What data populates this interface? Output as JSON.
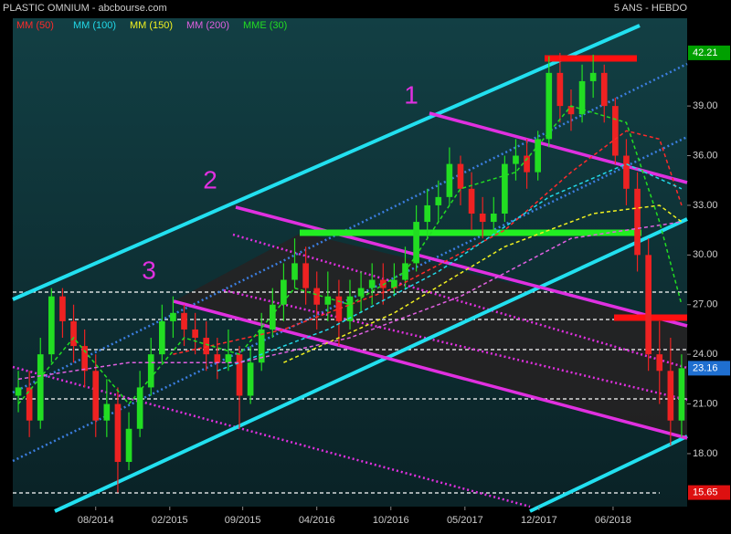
{
  "chart_data": {
    "type": "candlestick",
    "title": "PLASTIC OMNIUM - abcbourse.com",
    "subtitle": "5 ANS - HEBDO",
    "x": [
      0,
      1,
      2,
      3,
      4,
      5,
      6,
      7,
      8,
      9,
      10,
      11,
      12,
      13,
      14,
      15,
      16,
      17,
      18,
      19,
      20,
      21,
      22,
      23,
      24,
      25,
      26,
      27,
      28,
      29,
      30,
      31,
      32,
      33,
      34,
      35,
      36,
      37,
      38,
      39,
      40,
      41,
      42,
      43,
      44,
      45,
      46,
      47,
      48,
      49,
      50,
      51,
      52,
      53,
      54,
      55,
      56,
      57,
      58,
      59,
      60
    ],
    "open": [
      21.5,
      22,
      20,
      24,
      27.5,
      26,
      24.5,
      23,
      20,
      21,
      17.5,
      19.5,
      22,
      24,
      26,
      26.5,
      25.5,
      25,
      24,
      23.5,
      24,
      21.5,
      23.5,
      25.5,
      27,
      28.5,
      29.5,
      28,
      27,
      27.5,
      26,
      27.5,
      28,
      28.5,
      28,
      28.5,
      29.5,
      32,
      33,
      33.5,
      35.5,
      34,
      32.5,
      32,
      32.5,
      35.5,
      36,
      35,
      37,
      41,
      39,
      38.5,
      40.5,
      41,
      39,
      36,
      34,
      30,
      24,
      23,
      20
    ],
    "high": [
      23,
      23,
      25,
      28,
      28,
      27,
      25.5,
      24,
      22.5,
      22,
      20.5,
      23,
      25,
      27,
      27.5,
      27,
      26.5,
      26,
      25,
      25.5,
      24.5,
      24.5,
      26.5,
      28,
      29.5,
      31,
      30.5,
      29,
      29,
      28.5,
      28.5,
      29,
      29.5,
      29.5,
      29.5,
      30.5,
      33,
      34,
      34.5,
      36.5,
      36,
      35,
      33.5,
      33.5,
      36,
      37,
      37,
      37.5,
      42,
      42.21,
      40,
      41.5,
      42.1,
      41.5,
      39.5,
      37,
      35,
      31,
      26,
      25,
      24
    ],
    "low": [
      20.5,
      19,
      19.5,
      23.5,
      25,
      23.5,
      22,
      19,
      19,
      15.65,
      17,
      19,
      21.5,
      23.5,
      25,
      24.5,
      24,
      23,
      22.5,
      23,
      19.5,
      21,
      23,
      25,
      26,
      28,
      27,
      25.5,
      26,
      24.5,
      25.5,
      26.5,
      27,
      27,
      27.5,
      28,
      29,
      31,
      32,
      33,
      33,
      31.5,
      31,
      31.5,
      32,
      34.5,
      34,
      34.5,
      36.5,
      38,
      37.5,
      38,
      39.5,
      38,
      35.5,
      33,
      29,
      23,
      21,
      18.5,
      19
    ],
    "close": [
      22,
      20,
      24,
      27.5,
      26,
      24.5,
      23,
      20,
      21,
      17.5,
      19.5,
      22,
      24,
      26,
      26.5,
      25.5,
      25,
      24,
      23.5,
      24,
      21.5,
      23.5,
      25.5,
      27,
      28.5,
      29.5,
      28,
      27,
      27.5,
      26,
      27.5,
      28,
      28.5,
      28,
      28.5,
      29.5,
      32,
      33,
      33.5,
      35.5,
      34,
      32.5,
      32,
      32.5,
      35.5,
      36,
      35,
      37,
      41,
      39,
      38.5,
      40.5,
      41,
      39,
      36,
      34,
      30,
      24,
      23,
      20,
      23.16
    ],
    "up_color": "#22dd22",
    "down_color": "#ee2222",
    "series": [
      {
        "name": "MM (50)",
        "color": "#ff2a2a",
        "x": [
          14,
          24,
          34,
          44,
          50,
          55,
          58,
          60
        ],
        "values": [
          24,
          25.5,
          28,
          31.5,
          35,
          37.5,
          37,
          33
        ]
      },
      {
        "name": "MM (100)",
        "color": "#22d8e8",
        "x": [
          18,
          28,
          38,
          48,
          55,
          60
        ],
        "values": [
          23,
          25.5,
          29,
          33.5,
          35.5,
          34
        ]
      },
      {
        "name": "MM (150)",
        "color": "#f0f020",
        "x": [
          24,
          34,
          44,
          52,
          58,
          60
        ],
        "values": [
          23.5,
          26.5,
          30.5,
          32.5,
          33,
          32
        ]
      },
      {
        "name": "MM (200)",
        "color": "#e060e0",
        "x": [
          0,
          10,
          20,
          30,
          40,
          50,
          60
        ],
        "values": [
          22.5,
          23.5,
          23.5,
          25,
          27.5,
          31,
          32
        ]
      },
      {
        "name": "MME (30)",
        "color": "#22dd22",
        "x": [
          0,
          5,
          10,
          15,
          20,
          25,
          30,
          35,
          40,
          45,
          50,
          55,
          58,
          60
        ],
        "values": [
          21,
          25,
          21,
          25,
          24,
          28,
          27,
          29,
          34,
          35,
          39,
          38,
          32,
          27
        ]
      }
    ],
    "xlim": [
      -0.5,
      60.5
    ],
    "xticks": [
      {
        "value": 7.0,
        "label": "08/2014"
      },
      {
        "value": 13.7,
        "label": "02/2015"
      },
      {
        "value": 20.3,
        "label": "09/2015"
      },
      {
        "value": 27.0,
        "label": "04/2016"
      },
      {
        "value": 33.7,
        "label": "10/2016"
      },
      {
        "value": 40.4,
        "label": "05/2017"
      },
      {
        "value": 47.1,
        "label": "12/2017"
      },
      {
        "value": 53.8,
        "label": "06/2018"
      }
    ],
    "ylim": [
      14.8,
      44.3
    ],
    "yticks": [
      {
        "value": 18,
        "label": "18.00"
      },
      {
        "value": 21,
        "label": "21.00"
      },
      {
        "value": 24,
        "label": "24.00"
      },
      {
        "value": 27,
        "label": "27.00"
      },
      {
        "value": 30,
        "label": "30.00"
      },
      {
        "value": 33,
        "label": "33.00"
      },
      {
        "value": 36,
        "label": "36.00"
      },
      {
        "value": 39,
        "label": "39.00"
      }
    ],
    "price_markers": [
      {
        "value": 42.21,
        "color": "#00a000"
      },
      {
        "value": 23.16,
        "color": "#1f6fd0"
      },
      {
        "value": 15.65,
        "color": "#dd1010"
      }
    ],
    "annotations": [
      "1",
      "2",
      "3"
    ]
  }
}
